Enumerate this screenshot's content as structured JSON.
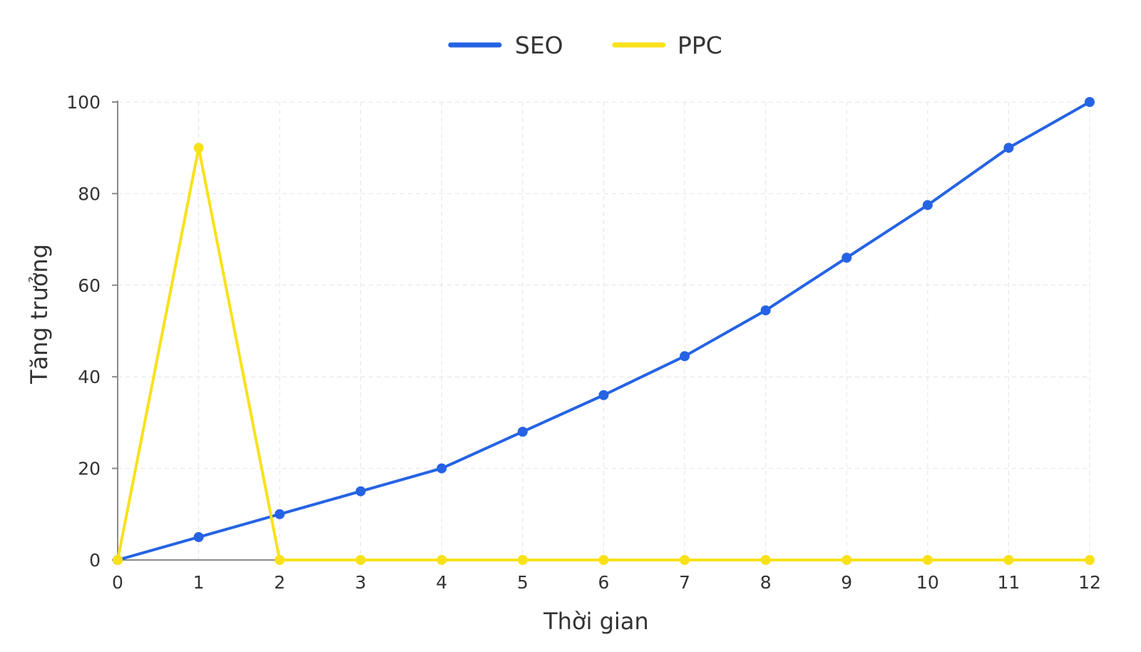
{
  "chart_data": {
    "type": "line",
    "title": "",
    "xlabel": "Thời gian",
    "ylabel": "Tăng trưởng",
    "x": [
      0,
      1,
      2,
      3,
      4,
      5,
      6,
      7,
      8,
      9,
      10,
      11,
      12
    ],
    "x_ticks": [
      "0",
      "1",
      "2",
      "3",
      "4",
      "5",
      "6",
      "7",
      "8",
      "9",
      "10",
      "11",
      "12"
    ],
    "y_ticks": [
      "0",
      "20",
      "40",
      "60",
      "80",
      "100"
    ],
    "xlim": [
      0,
      12
    ],
    "ylim": [
      0,
      100
    ],
    "grid": true,
    "legend_position": "top-center",
    "series": [
      {
        "name": "SEO",
        "color": "#2563e4",
        "values": [
          0,
          5,
          10,
          15,
          20,
          28,
          36,
          44.5,
          54.5,
          66,
          77.5,
          90,
          100
        ]
      },
      {
        "name": "PPC",
        "color": "#f9e11a",
        "values": [
          0,
          90,
          0,
          0,
          0,
          0,
          0,
          0,
          0,
          0,
          0,
          0,
          0
        ]
      }
    ]
  }
}
